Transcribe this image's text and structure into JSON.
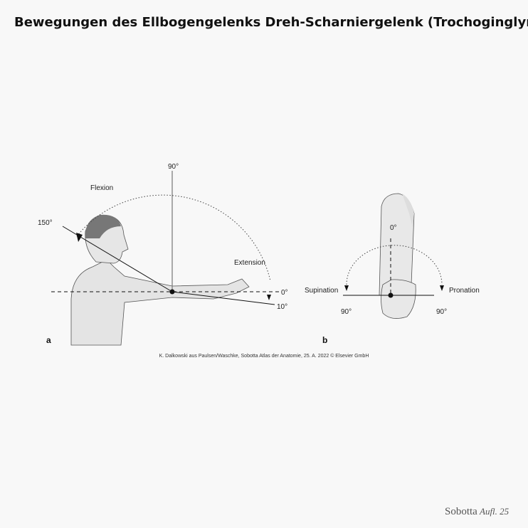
{
  "header": {
    "title": "Bewegungen des Ellbogengelenks Dreh-Scharniergelenk (Trochoginglymus)"
  },
  "figure_a": {
    "panel": "a",
    "labels": {
      "top": "90°",
      "flexion": "Flexion",
      "max": "150°",
      "extension": "Extension",
      "zero": "0°",
      "hyper": "10°"
    }
  },
  "figure_b": {
    "panel": "b",
    "labels": {
      "zero": "0°",
      "supination": "Supination",
      "pronation": "Pronation",
      "left": "90°",
      "right": "90°"
    }
  },
  "caption": "K. Dalkowski aus Paulsen/Waschke, Sobotta Atlas der Anatomie, 25. A. 2022 © Elsevier GmbH",
  "footer": {
    "brand": "Sobotta",
    "edition": "Aufl. 25"
  }
}
